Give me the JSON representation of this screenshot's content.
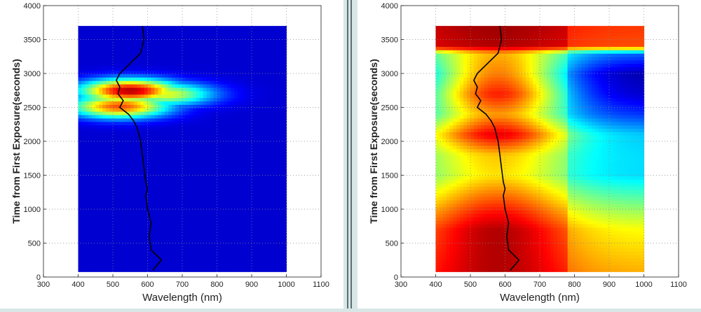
{
  "charts": [
    {
      "id": "left",
      "xlabel": "Wavelength (nm)",
      "ylabel": "Time from First Exposure(seconds)",
      "xticks": [
        300,
        400,
        500,
        600,
        700,
        800,
        900,
        1000,
        1100
      ],
      "yticks": [
        0,
        500,
        1000,
        1500,
        2000,
        2500,
        3000,
        3500,
        4000
      ]
    },
    {
      "id": "right",
      "xlabel": "Wavelength (nm)",
      "ylabel": "Time from First Exposure(seconds)",
      "xticks": [
        300,
        400,
        500,
        600,
        700,
        800,
        900,
        1000,
        1100
      ],
      "yticks": [
        0,
        500,
        1000,
        1500,
        2000,
        2500,
        3000,
        3500,
        4000
      ]
    }
  ],
  "chart_data": [
    {
      "type": "heatmap",
      "xlabel": "Wavelength (nm)",
      "ylabel": "Time from First Exposure(seconds)",
      "xlim": [
        300,
        1100
      ],
      "ylim": [
        0,
        4000
      ],
      "data_x_range": [
        400,
        1000
      ],
      "data_y_range": [
        80,
        3700
      ],
      "grid": true,
      "colormap": "jet",
      "background_intensity": 0.08,
      "hotspots": [
        {
          "wavelength": 550,
          "time": 2750,
          "intensity": 0.95
        },
        {
          "wavelength": 520,
          "time": 2520,
          "intensity": 0.8
        },
        {
          "wavelength": 650,
          "time": 2700,
          "intensity": 0.6
        }
      ],
      "peak_trace": {
        "color": "#000000",
        "times": [
          3700,
          3500,
          3300,
          3100,
          3000,
          2900,
          2800,
          2700,
          2600,
          2500,
          2400,
          2300,
          2200,
          2100,
          2000,
          1800,
          1600,
          1400,
          1300,
          1200,
          1000,
          800,
          600,
          400,
          250,
          100
        ],
        "wavelengths": [
          585,
          590,
          580,
          540,
          520,
          510,
          520,
          515,
          530,
          520,
          545,
          560,
          570,
          575,
          580,
          585,
          590,
          595,
          600,
          595,
          600,
          610,
          605,
          610,
          640,
          615
        ]
      }
    },
    {
      "type": "heatmap",
      "xlabel": "Wavelength (nm)",
      "ylabel": "Time from First Exposure(seconds)",
      "xlim": [
        300,
        1100
      ],
      "ylim": [
        0,
        4000
      ],
      "data_x_range": [
        400,
        1000
      ],
      "data_y_range": [
        80,
        3700
      ],
      "grid": true,
      "colormap": "jet",
      "time_profile": [
        {
          "time": 100,
          "peak": 0.95,
          "edge": 0.78
        },
        {
          "time": 700,
          "peak": 0.95,
          "edge": 0.7
        },
        {
          "time": 1000,
          "peak": 0.85,
          "edge": 0.6
        },
        {
          "time": 1500,
          "peak": 0.65,
          "edge": 0.42
        },
        {
          "time": 1800,
          "peak": 0.68,
          "edge": 0.42
        },
        {
          "time": 2100,
          "peak": 0.9,
          "edge": 0.4
        },
        {
          "time": 2400,
          "peak": 0.72,
          "edge": 0.25
        },
        {
          "time": 2700,
          "peak": 0.85,
          "edge": 0.15
        },
        {
          "time": 3000,
          "peak": 0.75,
          "edge": 0.12
        },
        {
          "time": 3300,
          "peak": 0.7,
          "edge": 0.3
        },
        {
          "time": 3400,
          "peak": 0.95,
          "edge": 0.88
        },
        {
          "time": 3700,
          "peak": 0.97,
          "edge": 0.9
        }
      ],
      "peak_trace": {
        "color": "#000000",
        "times": [
          3700,
          3500,
          3300,
          3100,
          3000,
          2900,
          2800,
          2700,
          2600,
          2500,
          2400,
          2300,
          2200,
          2100,
          2000,
          1800,
          1600,
          1400,
          1300,
          1200,
          1000,
          800,
          600,
          400,
          250,
          100
        ],
        "wavelengths": [
          585,
          590,
          580,
          540,
          520,
          510,
          520,
          515,
          530,
          520,
          545,
          560,
          570,
          575,
          580,
          585,
          590,
          595,
          600,
          595,
          600,
          610,
          605,
          610,
          640,
          615
        ]
      }
    }
  ]
}
